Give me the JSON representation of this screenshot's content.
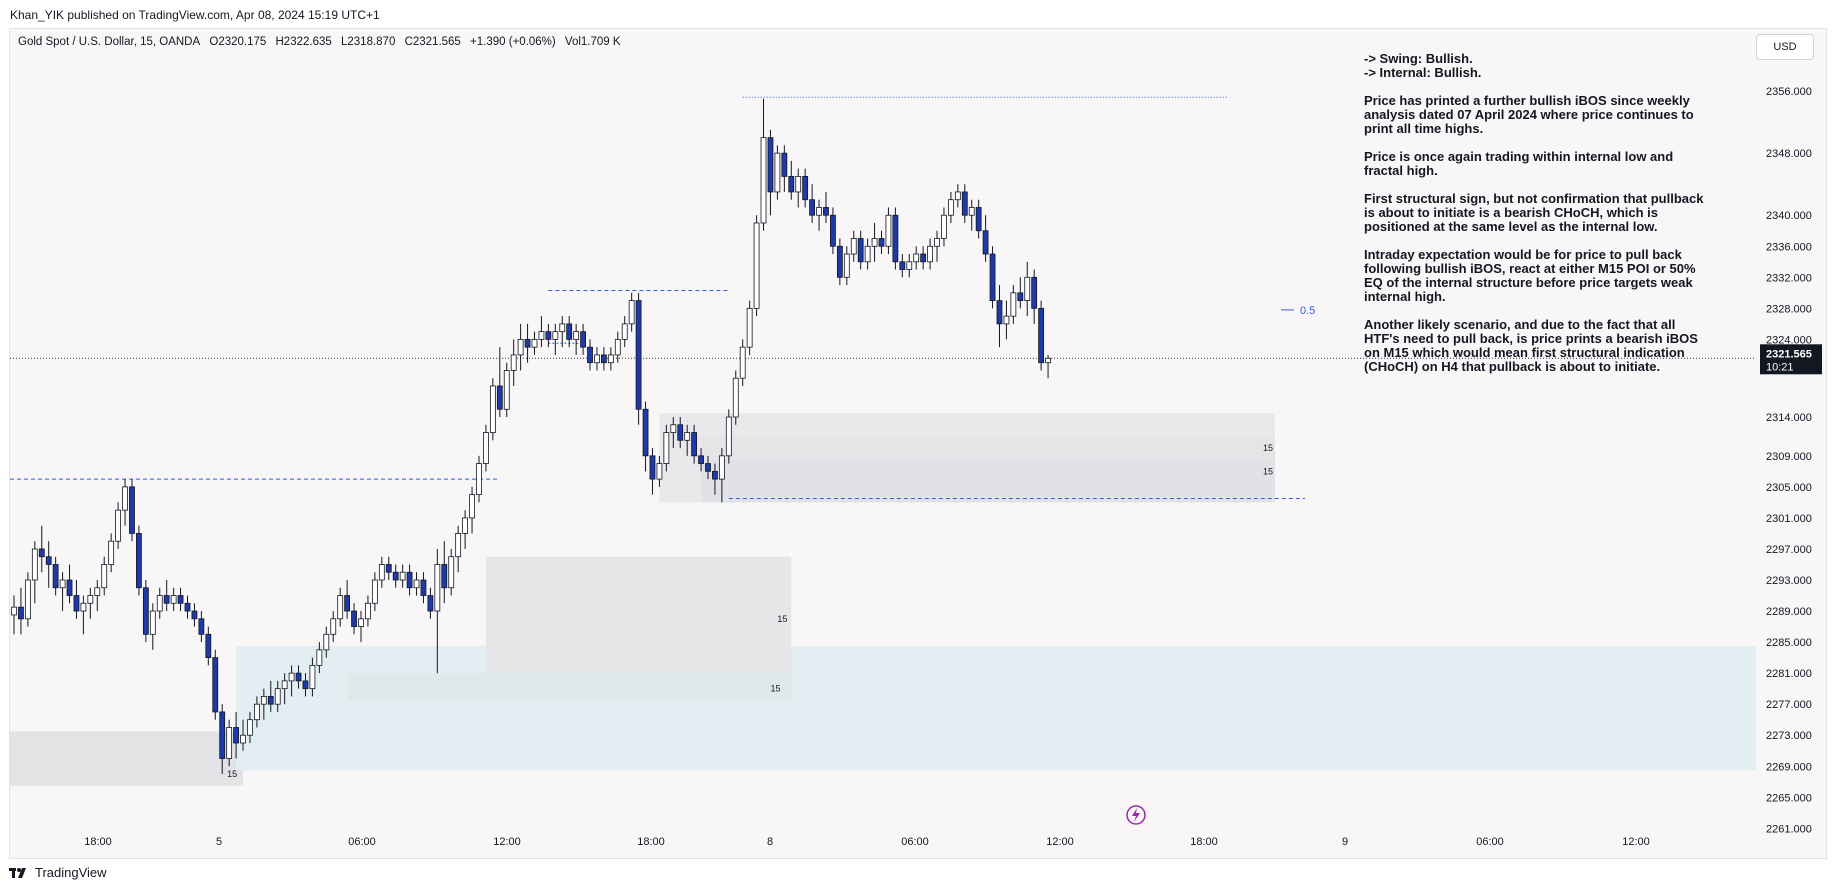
{
  "header": {
    "publisher": "Khan_YIK published on TradingView.com, Apr 08, 2024 15:19 UTC+1"
  },
  "symbol": {
    "name": "Gold Spot / U.S. Dollar, 15, OANDA",
    "open": "O2320.175",
    "high": "H2322.635",
    "low": "L2318.870",
    "close": "C2321.565",
    "change": "+1.390 (+0.06%)",
    "volume": "Vol1.709 K"
  },
  "currency_button": "USD",
  "analysis": {
    "line1": "-> Swing: Bullish.",
    "line2": "-> Internal: Bullish.",
    "p1": "Price has printed a further bullish iBOS since weekly analysis dated 07 April 2024 where price continues to print all time highs.",
    "p2": "Price is once again trading within internal low and fractal high.",
    "p3": "First structural sign, but not confirmation that pullback is about to initiate is a bearish CHoCH, which is positioned at the same level as the internal low.",
    "p4": "Intraday expectation would be for price to pull back following bullish iBOS, react at either M15 POI or 50% EQ of the internal structure before price targets weak internal high.",
    "p5": "Another likely scenario, and due to the fact that all HTF's need to pull back, is price prints a bearish iBOS on M15 which would mean first structural indication (CHoCH) on H4 that pullback is about to initiate."
  },
  "footer": {
    "brand": "TradingView"
  },
  "chart_data": {
    "type": "candlestick",
    "price_axis": {
      "ticks": [
        2356.0,
        2348.0,
        2340.0,
        2336.0,
        2332.0,
        2328.0,
        2324.0,
        2314.0,
        2309.0,
        2305.0,
        2301.0,
        2297.0,
        2293.0,
        2289.0,
        2285.0,
        2281.0,
        2277.0,
        2273.0,
        2269.0,
        2265.0,
        2261.0
      ],
      "tick_labels": [
        "2356.000",
        "2348.000",
        "2340.000",
        "2336.000",
        "2332.000",
        "2328.000",
        "2324.000",
        "2314.000",
        "2309.000",
        "2305.000",
        "2301.000",
        "2297.000",
        "2293.000",
        "2289.000",
        "2285.000",
        "2281.000",
        "2277.000",
        "2273.000",
        "2269.000",
        "2265.000",
        "2261.000"
      ],
      "range": [
        2259.5,
        2360
      ]
    },
    "time_axis": {
      "labels": [
        "18:00",
        "5",
        "06:00",
        "12:00",
        "18:00",
        "8",
        "06:00",
        "12:00",
        "18:00",
        "9",
        "06:00",
        "12:00"
      ]
    },
    "current_price": {
      "value": 2321.565,
      "label": "2321.565",
      "countdown": "10:21"
    },
    "fib_label": "0.5",
    "zone_label": "15",
    "color_up": "#ffffff",
    "color_down": "#1e3aa8",
    "candles": [
      [
        2288.5,
        2291,
        2286,
        2289.5
      ],
      [
        2289.5,
        2292,
        2286,
        2288
      ],
      [
        2288,
        2294,
        2287,
        2293
      ],
      [
        2293,
        2298,
        2290,
        2297
      ],
      [
        2297,
        2300,
        2294,
        2296
      ],
      [
        2296,
        2298,
        2292,
        2295
      ],
      [
        2295,
        2296,
        2291,
        2292
      ],
      [
        2292,
        2294,
        2289,
        2293
      ],
      [
        2293,
        2295,
        2290,
        2291
      ],
      [
        2291,
        2293,
        2288,
        2289
      ],
      [
        2289,
        2291,
        2286,
        2290
      ],
      [
        2290,
        2292,
        2288,
        2291
      ],
      [
        2291,
        2293,
        2289,
        2292
      ],
      [
        2292,
        2296,
        2291,
        2295
      ],
      [
        2295,
        2299,
        2294,
        2298
      ],
      [
        2298,
        2303,
        2297,
        2302
      ],
      [
        2302,
        2306,
        2300,
        2305
      ],
      [
        2305,
        2306,
        2298,
        2299
      ],
      [
        2299,
        2300,
        2291,
        2292
      ],
      [
        2292,
        2293,
        2285,
        2286
      ],
      [
        2286,
        2290,
        2284,
        2289
      ],
      [
        2289,
        2292,
        2288,
        2291
      ],
      [
        2291,
        2293,
        2289,
        2290
      ],
      [
        2290,
        2292,
        2289,
        2291
      ],
      [
        2291,
        2292,
        2289,
        2290
      ],
      [
        2290,
        2291,
        2288,
        2289
      ],
      [
        2289,
        2290,
        2287,
        2288
      ],
      [
        2288,
        2289,
        2285,
        2286
      ],
      [
        2286,
        2287,
        2282,
        2283
      ],
      [
        2283,
        2284,
        2275,
        2276
      ],
      [
        2276,
        2277,
        2268,
        2270
      ],
      [
        2270,
        2275,
        2269,
        2274
      ],
      [
        2274,
        2276,
        2270,
        2272
      ],
      [
        2272,
        2275,
        2271,
        2273
      ],
      [
        2273,
        2276,
        2272,
        2275
      ],
      [
        2275,
        2278,
        2274,
        2277
      ],
      [
        2277,
        2279,
        2275,
        2278
      ],
      [
        2278,
        2280,
        2276,
        2277
      ],
      [
        2277,
        2280,
        2276,
        2279
      ],
      [
        2279,
        2281,
        2277,
        2280
      ],
      [
        2280,
        2282,
        2278,
        2281
      ],
      [
        2281,
        2282,
        2279,
        2280
      ],
      [
        2280,
        2281,
        2278,
        2279
      ],
      [
        2279,
        2283,
        2278,
        2282
      ],
      [
        2282,
        2285,
        2281,
        2284
      ],
      [
        2284,
        2287,
        2283,
        2286
      ],
      [
        2286,
        2289,
        2285,
        2288
      ],
      [
        2288,
        2292,
        2287,
        2291
      ],
      [
        2291,
        2293,
        2288,
        2289
      ],
      [
        2289,
        2290,
        2286,
        2287
      ],
      [
        2287,
        2289,
        2285,
        2288
      ],
      [
        2288,
        2291,
        2287,
        2290
      ],
      [
        2290,
        2294,
        2289,
        2293
      ],
      [
        2293,
        2296,
        2292,
        2295
      ],
      [
        2295,
        2296,
        2293,
        2294
      ],
      [
        2294,
        2295,
        2292,
        2293
      ],
      [
        2293,
        2295,
        2292,
        2294
      ],
      [
        2294,
        2295,
        2291,
        2292
      ],
      [
        2292,
        2294,
        2291,
        2293
      ],
      [
        2293,
        2294,
        2290,
        2291
      ],
      [
        2291,
        2292,
        2288,
        2289
      ],
      [
        2289,
        2297,
        2281,
        2295
      ],
      [
        2295,
        2298,
        2290,
        2292
      ],
      [
        2292,
        2297,
        2291,
        2296
      ],
      [
        2296,
        2300,
        2294,
        2299
      ],
      [
        2299,
        2302,
        2297,
        2301
      ],
      [
        2301,
        2305,
        2299,
        2304
      ],
      [
        2304,
        2309,
        2303,
        2308
      ],
      [
        2308,
        2313,
        2307,
        2312
      ],
      [
        2312,
        2319,
        2311,
        2318
      ],
      [
        2318,
        2323,
        2314,
        2315
      ],
      [
        2315,
        2321,
        2314,
        2320
      ],
      [
        2320,
        2324,
        2318,
        2322
      ],
      [
        2322,
        2326,
        2320,
        2324
      ],
      [
        2324,
        2326,
        2321,
        2323
      ],
      [
        2323,
        2325,
        2322,
        2324
      ],
      [
        2324,
        2327,
        2323,
        2325
      ],
      [
        2325,
        2326,
        2323,
        2324
      ],
      [
        2324,
        2326,
        2322,
        2325
      ],
      [
        2325,
        2327,
        2323,
        2326
      ],
      [
        2326,
        2327,
        2323,
        2324
      ],
      [
        2324,
        2326,
        2322,
        2325
      ],
      [
        2325,
        2326,
        2322,
        2323
      ],
      [
        2323,
        2324,
        2320,
        2321
      ],
      [
        2321,
        2323,
        2320,
        2322
      ],
      [
        2322,
        2323,
        2320,
        2321
      ],
      [
        2321,
        2323,
        2320,
        2322
      ],
      [
        2322,
        2325,
        2321,
        2324
      ],
      [
        2324,
        2327,
        2323,
        2326
      ],
      [
        2326,
        2330,
        2325,
        2329
      ],
      [
        2329,
        2330,
        2313,
        2315
      ],
      [
        2315,
        2316,
        2307,
        2309
      ],
      [
        2309,
        2310,
        2304,
        2306
      ],
      [
        2306,
        2309,
        2305,
        2308
      ],
      [
        2308,
        2313,
        2307,
        2312
      ],
      [
        2312,
        2314,
        2310,
        2313
      ],
      [
        2313,
        2314,
        2310,
        2311
      ],
      [
        2311,
        2313,
        2309,
        2312
      ],
      [
        2312,
        2313,
        2308,
        2309
      ],
      [
        2309,
        2310,
        2307,
        2308
      ],
      [
        2308,
        2309,
        2306,
        2307
      ],
      [
        2307,
        2308,
        2304,
        2306
      ],
      [
        2306,
        2310,
        2303,
        2309
      ],
      [
        2309,
        2315,
        2308,
        2314
      ],
      [
        2314,
        2320,
        2313,
        2319
      ],
      [
        2319,
        2324,
        2318,
        2323
      ],
      [
        2323,
        2329,
        2322,
        2328
      ],
      [
        2328,
        2340,
        2327,
        2339
      ],
      [
        2339,
        2355,
        2338,
        2350
      ],
      [
        2350,
        2351,
        2340,
        2343
      ],
      [
        2343,
        2349,
        2342,
        2348
      ],
      [
        2348,
        2349,
        2343,
        2345
      ],
      [
        2345,
        2347,
        2342,
        2343
      ],
      [
        2343,
        2346,
        2341,
        2345
      ],
      [
        2345,
        2346,
        2341,
        2342
      ],
      [
        2342,
        2344,
        2339,
        2340
      ],
      [
        2340,
        2342,
        2338,
        2341
      ],
      [
        2341,
        2343,
        2339,
        2340
      ],
      [
        2340,
        2341,
        2335,
        2336
      ],
      [
        2336,
        2337,
        2331,
        2332
      ],
      [
        2332,
        2336,
        2331,
        2335
      ],
      [
        2335,
        2338,
        2334,
        2337
      ],
      [
        2337,
        2338,
        2333,
        2334
      ],
      [
        2334,
        2337,
        2333,
        2336
      ],
      [
        2336,
        2339,
        2334,
        2337
      ],
      [
        2337,
        2338,
        2335,
        2336
      ],
      [
        2336,
        2341,
        2335,
        2340
      ],
      [
        2340,
        2341,
        2333,
        2334
      ],
      [
        2334,
        2335,
        2332,
        2333
      ],
      [
        2333,
        2335,
        2332,
        2334
      ],
      [
        2334,
        2336,
        2333,
        2335
      ],
      [
        2335,
        2336,
        2333,
        2334
      ],
      [
        2334,
        2337,
        2333,
        2336
      ],
      [
        2336,
        2338,
        2334,
        2337
      ],
      [
        2337,
        2341,
        2336,
        2340
      ],
      [
        2340,
        2343,
        2339,
        2342
      ],
      [
        2342,
        2344,
        2341,
        2343
      ],
      [
        2343,
        2344,
        2339,
        2340
      ],
      [
        2340,
        2342,
        2338,
        2341
      ],
      [
        2341,
        2342,
        2337,
        2338
      ],
      [
        2338,
        2340,
        2334,
        2335
      ],
      [
        2335,
        2336,
        2328,
        2329
      ],
      [
        2329,
        2331,
        2323,
        2326
      ],
      [
        2326,
        2329,
        2324,
        2327
      ],
      [
        2327,
        2331,
        2326,
        2330
      ],
      [
        2330,
        2332,
        2328,
        2329
      ],
      [
        2329,
        2334,
        2327,
        2332
      ],
      [
        2332,
        2333,
        2326,
        2328
      ],
      [
        2328,
        2329,
        2320,
        2321
      ],
      [
        2321,
        2322,
        2319,
        2321.565
      ]
    ]
  }
}
